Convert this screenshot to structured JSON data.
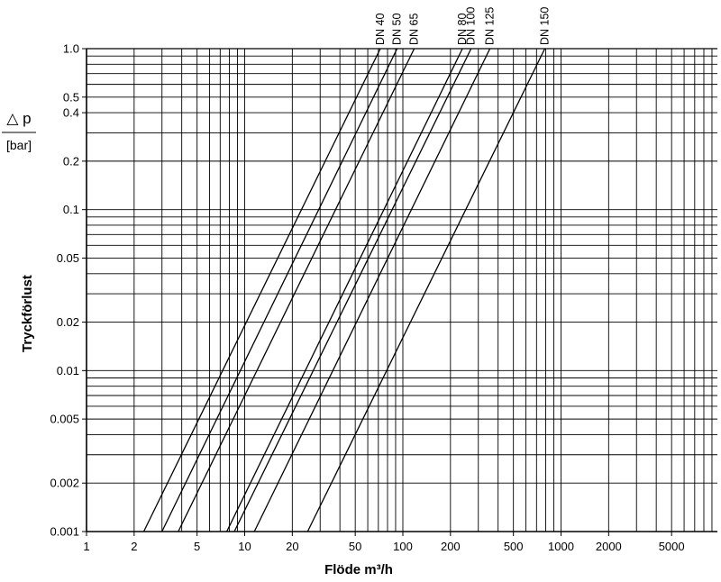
{
  "chart_data": {
    "type": "line",
    "xscale": "log",
    "yscale": "log",
    "xlim": [
      1,
      9000
    ],
    "ylim": [
      0.001,
      1.0
    ],
    "grid": true,
    "xlabel": "Flöde m³/h",
    "ylabel": "Tryckförlust",
    "ylabel_symbol": "△ p",
    "ylabel_unit": "[bar]",
    "x_ticks": [
      {
        "value": 1,
        "label": "1"
      },
      {
        "value": 2,
        "label": "2"
      },
      {
        "value": 5,
        "label": "5"
      },
      {
        "value": 10,
        "label": "10"
      },
      {
        "value": 20,
        "label": "20"
      },
      {
        "value": 50,
        "label": "50"
      },
      {
        "value": 100,
        "label": "100"
      },
      {
        "value": 200,
        "label": "200"
      },
      {
        "value": 500,
        "label": "500"
      },
      {
        "value": 1000,
        "label": "1000"
      },
      {
        "value": 2000,
        "label": "2000"
      },
      {
        "value": 5000,
        "label": "5000"
      }
    ],
    "y_ticks": [
      {
        "value": 0.001,
        "label": "0.001"
      },
      {
        "value": 0.002,
        "label": "0.002"
      },
      {
        "value": 0.005,
        "label": "0.005"
      },
      {
        "value": 0.01,
        "label": "0.01"
      },
      {
        "value": 0.02,
        "label": "0.02"
      },
      {
        "value": 0.05,
        "label": "0.05"
      },
      {
        "value": 0.1,
        "label": "0.1"
      },
      {
        "value": 0.2,
        "label": "0.2"
      },
      {
        "value": 0.4,
        "label": "0.4"
      },
      {
        "value": 0.5,
        "label": "0.5"
      },
      {
        "value": 1.0,
        "label": "1.0"
      }
    ],
    "series": [
      {
        "name": "DN 40",
        "x": [
          2.3,
          72
        ],
        "y": [
          0.001,
          1.0
        ]
      },
      {
        "name": "DN 50",
        "x": [
          3.0,
          92
        ],
        "y": [
          0.001,
          1.0
        ]
      },
      {
        "name": "DN 65",
        "x": [
          3.8,
          118
        ],
        "y": [
          0.001,
          1.0
        ]
      },
      {
        "name": "DN 80",
        "x": [
          7.7,
          238
        ],
        "y": [
          0.001,
          1.0
        ]
      },
      {
        "name": "DN 100",
        "x": [
          8.6,
          270
        ],
        "y": [
          0.001,
          1.0
        ]
      },
      {
        "name": "DN 125",
        "x": [
          11.5,
          355
        ],
        "y": [
          0.001,
          1.0
        ]
      },
      {
        "name": "DN 150",
        "x": [
          25,
          790
        ],
        "y": [
          0.001,
          1.0
        ]
      }
    ]
  }
}
